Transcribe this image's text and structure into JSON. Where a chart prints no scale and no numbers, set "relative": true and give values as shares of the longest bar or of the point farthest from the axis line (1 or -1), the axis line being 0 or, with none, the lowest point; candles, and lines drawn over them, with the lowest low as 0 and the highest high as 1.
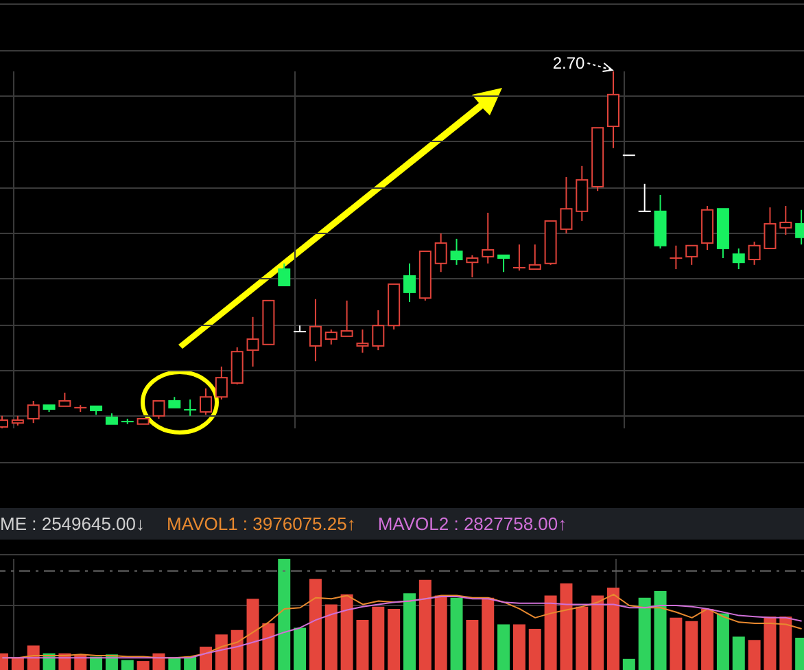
{
  "chart_data": [
    {
      "type": "candlestick",
      "relative": true,
      "grid": true,
      "annotations": [
        "2.70"
      ],
      "categories": [
        null,
        null,
        null,
        null,
        null,
        null,
        null,
        null,
        null,
        null,
        null,
        null,
        null,
        null,
        null,
        null,
        null,
        null,
        null,
        null,
        null,
        null,
        null,
        null,
        null,
        null,
        null,
        null,
        null,
        null,
        null,
        null,
        null,
        null,
        null,
        null,
        null,
        null,
        null,
        null,
        null,
        null,
        null,
        null,
        null,
        null,
        null,
        null,
        null,
        null,
        null,
        null
      ],
      "ohlc": [
        [
          0.004,
          0.035,
          0,
          0.023
        ],
        [
          0.015,
          0.035,
          0.008,
          0.023
        ],
        [
          0.027,
          0.077,
          0.015,
          0.065
        ],
        [
          0.065,
          0.065,
          0.046,
          0.054
        ],
        [
          0.062,
          0.1,
          0.062,
          0.077
        ],
        [
          0.056,
          0.065,
          0.046,
          0.058
        ],
        [
          0.062,
          0.062,
          0.038,
          0.05
        ],
        [
          0.031,
          0.042,
          0.012,
          0.012
        ],
        [
          0.019,
          0.027,
          0.012,
          0.017
        ],
        [
          0.012,
          0.027,
          0.012,
          0.027
        ],
        [
          0.035,
          0.077,
          0.027,
          0.077
        ],
        [
          0.077,
          0.088,
          0.058,
          0.058
        ],
        [
          0.052,
          0.081,
          0.035,
          0.05
        ],
        [
          0.046,
          0.112,
          0.038,
          0.088
        ],
        [
          0.088,
          0.173,
          0.081,
          0.142
        ],
        [
          0.127,
          0.227,
          0.123,
          0.215
        ],
        [
          0.219,
          0.312,
          0.173,
          0.25
        ],
        [
          0.235,
          0.358,
          0.235,
          0.358
        ],
        [
          0.446,
          0.462,
          0.4,
          0.4
        ],
        [
          0.271,
          0.288,
          0.271,
          0.271
        ],
        [
          0.231,
          0.362,
          0.188,
          0.285
        ],
        [
          0.25,
          0.277,
          0.235,
          0.269
        ],
        [
          0.258,
          0.358,
          0.258,
          0.273
        ],
        [
          0.231,
          0.277,
          0.212,
          0.238
        ],
        [
          0.231,
          0.331,
          0.219,
          0.288
        ],
        [
          0.288,
          0.404,
          0.277,
          0.404
        ],
        [
          0.427,
          0.462,
          0.354,
          0.381
        ],
        [
          0.365,
          0.496,
          0.358,
          0.496
        ],
        [
          0.462,
          0.546,
          0.438,
          0.519
        ],
        [
          0.496,
          0.531,
          0.458,
          0.473
        ],
        [
          0.465,
          0.485,
          0.423,
          0.477
        ],
        [
          0.481,
          0.604,
          0.462,
          0.5
        ],
        [
          0.485,
          0.485,
          0.438,
          0.477
        ],
        [
          0.448,
          0.515,
          0.442,
          0.45
        ],
        [
          0.446,
          0.515,
          0.446,
          0.458
        ],
        [
          0.462,
          0.581,
          0.458,
          0.581
        ],
        [
          0.558,
          0.704,
          0.546,
          0.615
        ],
        [
          0.608,
          0.735,
          0.581,
          0.696
        ],
        [
          0.677,
          0.842,
          0.665,
          0.842
        ],
        [
          0.846,
          1,
          0.785,
          0.935
        ],
        [
          0.765,
          0.765,
          0.765,
          0.765
        ],
        [
          0.608,
          0.685,
          0.608,
          0.608
        ],
        [
          0.608,
          0.654,
          0.504,
          0.512
        ],
        [
          0.475,
          0.512,
          0.446,
          0.477
        ],
        [
          0.481,
          0.512,
          0.458,
          0.512
        ],
        [
          0.519,
          0.623,
          0.5,
          0.612
        ],
        [
          0.615,
          0.615,
          0.477,
          0.504
        ],
        [
          0.488,
          0.504,
          0.446,
          0.465
        ],
        [
          0.473,
          0.523,
          0.458,
          0.512
        ],
        [
          0.504,
          0.619,
          0.504,
          0.573
        ],
        [
          0.562,
          0.623,
          0.542,
          0.577
        ],
        [
          0.573,
          0.612,
          0.515,
          0.535
        ]
      ]
    },
    {
      "type": "bar",
      "relative": true,
      "grid": true,
      "ref_lines": [
        {
          "axis": "y",
          "value": 0.89,
          "color": "#666666",
          "line_style": "dashed"
        }
      ],
      "annotations": [
        "ME : 2549645.00↓",
        "MAVOL1 : 3976075.25↑",
        "MAVOL2 : 2827758.00↑"
      ],
      "categories": [
        null,
        null,
        null,
        null,
        null,
        null,
        null,
        null,
        null,
        null,
        null,
        null,
        null,
        null,
        null,
        null,
        null,
        null,
        null,
        null,
        null,
        null,
        null,
        null,
        null,
        null,
        null,
        null,
        null,
        null,
        null,
        null,
        null,
        null,
        null,
        null,
        null,
        null,
        null,
        null,
        null,
        null,
        null,
        null,
        null,
        null,
        null,
        null,
        null,
        null,
        null,
        null
      ],
      "series": [
        {
          "type": "bar",
          "values": [
            0.15,
            0.11,
            0.22,
            0.15,
            0.15,
            0.14,
            0.12,
            0.14,
            0.09,
            0.08,
            0.15,
            0.11,
            0.12,
            0.21,
            0.32,
            0.36,
            0.64,
            0.42,
            1,
            0.38,
            0.82,
            0.59,
            0.68,
            0.45,
            0.57,
            0.55,
            0.69,
            0.81,
            0.67,
            0.65,
            0.45,
            0.65,
            0.41,
            0.41,
            0.37,
            0.67,
            0.78,
            0.57,
            0.67,
            0.74,
            0.1,
            0.65,
            0.71,
            0.47,
            0.44,
            0.55,
            0.51,
            0.3,
            0.27,
            0.48,
            0.48,
            0.29
          ],
          "colors": [
            "#e5463c",
            "#e5463c",
            "#e5463c",
            "#2fd35d",
            "#e5463c",
            "#e5463c",
            "#2fd35d",
            "#2fd35d",
            "#2fd35d",
            "#e5463c",
            "#e5463c",
            "#2fd35d",
            "#2fd35d",
            "#e5463c",
            "#e5463c",
            "#e5463c",
            "#e5463c",
            "#e5463c",
            "#2fd35d",
            "#2fd35d",
            "#e5463c",
            "#e5463c",
            "#e5463c",
            "#e5463c",
            "#e5463c",
            "#e5463c",
            "#2fd35d",
            "#e5463c",
            "#e5463c",
            "#2fd35d",
            "#e5463c",
            "#e5463c",
            "#2fd35d",
            "#e5463c",
            "#e5463c",
            "#e5463c",
            "#e5463c",
            "#e5463c",
            "#e5463c",
            "#e5463c",
            "#2fd35d",
            "#2fd35d",
            "#2fd35d",
            "#e5463c",
            "#e5463c",
            "#e5463c",
            "#2fd35d",
            "#2fd35d",
            "#e5463c",
            "#e5463c",
            "#e5463c",
            "#2fd35d"
          ]
        },
        {
          "type": "line",
          "color": "#e8892f",
          "values": [
            0.11,
            0.11,
            0.13,
            0.13,
            0.13,
            0.14,
            0.13,
            0.13,
            0.12,
            0.12,
            0.11,
            0.11,
            0.12,
            0.15,
            0.21,
            0.25,
            0.34,
            0.43,
            0.55,
            0.56,
            0.65,
            0.64,
            0.67,
            0.59,
            0.62,
            0.61,
            0.62,
            0.64,
            0.67,
            0.67,
            0.65,
            0.65,
            0.61,
            0.55,
            0.47,
            0.51,
            0.54,
            0.57,
            0.61,
            0.68,
            0.58,
            0.56,
            0.56,
            0.52,
            0.47,
            0.55,
            0.48,
            0.43,
            0.42,
            0.42,
            0.41,
            0.37
          ]
        },
        {
          "type": "line",
          "color": "#d070d8",
          "values": [
            0.11,
            0.11,
            0.11,
            0.11,
            0.11,
            0.11,
            0.11,
            0.11,
            0.11,
            0.11,
            0.11,
            0.11,
            0.11,
            0.15,
            0.18,
            0.21,
            0.25,
            0.29,
            0.34,
            0.38,
            0.45,
            0.5,
            0.54,
            0.57,
            0.59,
            0.61,
            0.62,
            0.64,
            0.66,
            0.66,
            0.64,
            0.64,
            0.61,
            0.6,
            0.6,
            0.6,
            0.59,
            0.59,
            0.59,
            0.59,
            0.56,
            0.56,
            0.58,
            0.58,
            0.57,
            0.55,
            0.52,
            0.49,
            0.48,
            0.47,
            0.47,
            0.44
          ]
        }
      ]
    }
  ]
}
